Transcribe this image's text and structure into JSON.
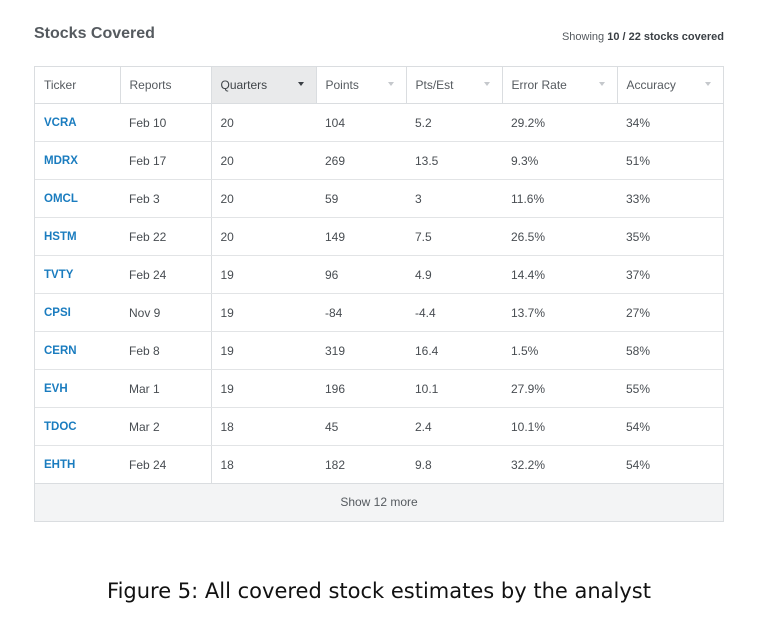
{
  "panel": {
    "title": "Stocks Covered",
    "showing_prefix": "Showing",
    "showing_count": "10 / 22 stocks covered"
  },
  "table": {
    "columns": [
      "Ticker",
      "Reports",
      "Quarters",
      "Points",
      "Pts/Est",
      "Error Rate",
      "Accuracy"
    ],
    "sorted_column": "Quarters",
    "rows": [
      [
        "VCRA",
        "Feb 10",
        "20",
        "104",
        "5.2",
        "29.2%",
        "34%"
      ],
      [
        "MDRX",
        "Feb 17",
        "20",
        "269",
        "13.5",
        "9.3%",
        "51%"
      ],
      [
        "OMCL",
        "Feb 3",
        "20",
        "59",
        "3",
        "11.6%",
        "33%"
      ],
      [
        "HSTM",
        "Feb 22",
        "20",
        "149",
        "7.5",
        "26.5%",
        "35%"
      ],
      [
        "TVTY",
        "Feb 24",
        "19",
        "96",
        "4.9",
        "14.4%",
        "37%"
      ],
      [
        "CPSI",
        "Nov 9",
        "19",
        "-84",
        "-4.4",
        "13.7%",
        "27%"
      ],
      [
        "CERN",
        "Feb 8",
        "19",
        "319",
        "16.4",
        "1.5%",
        "58%"
      ],
      [
        "EVH",
        "Mar 1",
        "19",
        "196",
        "10.1",
        "27.9%",
        "55%"
      ],
      [
        "TDOC",
        "Mar 2",
        "18",
        "45",
        "2.4",
        "10.1%",
        "54%"
      ],
      [
        "EHTH",
        "Feb 24",
        "18",
        "182",
        "9.8",
        "32.2%",
        "54%"
      ]
    ],
    "show_more_label": "Show 12 more"
  },
  "caption": "Figure 5: All covered stock estimates by the analyst",
  "colors": {
    "ticker_link": "#1a7cbf",
    "sorted_header_bg": "#e9eaeb",
    "show_more_bg": "#f3f4f5"
  },
  "icons": {
    "sort": "caret-down-icon"
  }
}
